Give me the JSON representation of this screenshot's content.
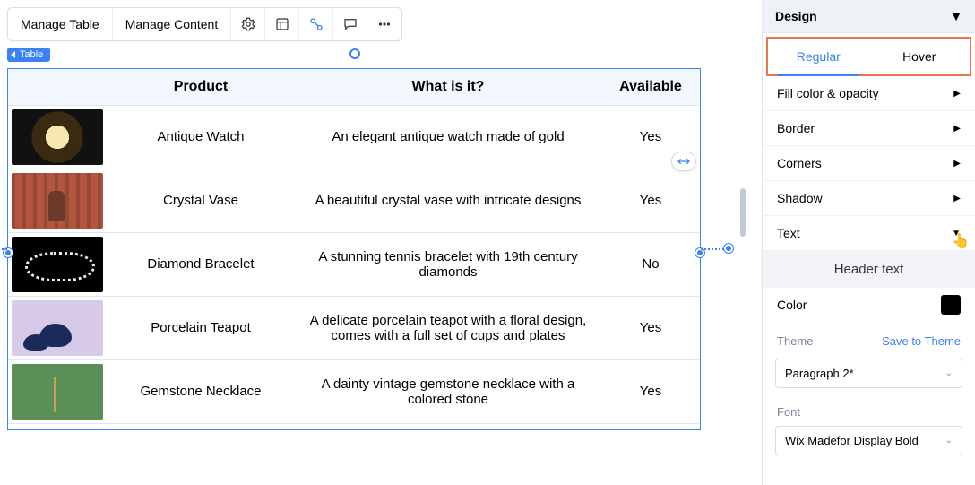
{
  "toolbar": {
    "manage_table": "Manage Table",
    "manage_content": "Manage Content"
  },
  "breadcrumb": {
    "label": "Table"
  },
  "table": {
    "columns": [
      "",
      "Product",
      "What is it?",
      "Available"
    ],
    "col_widths": [
      "110px",
      "210px",
      "auto",
      "110px"
    ],
    "header_bg": "#f3f8ff",
    "border_color": "#e0e6ef",
    "selection_color": "#3b82f6",
    "rows": [
      {
        "thumb_class": "p0",
        "product": "Antique Watch",
        "desc": "An elegant antique watch made of gold",
        "available": "Yes"
      },
      {
        "thumb_class": "p1",
        "product": "Crystal Vase",
        "desc": "A beautiful crystal vase with intricate designs",
        "available": "Yes"
      },
      {
        "thumb_class": "p2",
        "product": "Diamond Bracelet",
        "desc": "A stunning tennis bracelet with 19th century diamonds",
        "available": "No"
      },
      {
        "thumb_class": "p3",
        "product": "Porcelain Teapot",
        "desc": "A delicate porcelain teapot with a floral design, comes with a full set of cups and plates",
        "available": "Yes"
      },
      {
        "thumb_class": "p4",
        "product": "Gemstone Necklace",
        "desc": "A dainty vintage gemstone necklace with a colored stone",
        "available": "Yes"
      }
    ]
  },
  "panel": {
    "title": "Design",
    "tabs": {
      "regular": "Regular",
      "hover": "Hover",
      "active": "regular",
      "highlight_color": "#ed7451"
    },
    "rows": {
      "fill": "Fill color & opacity",
      "border": "Border",
      "corners": "Corners",
      "shadow": "Shadow",
      "text": "Text"
    },
    "sub_head": "Header text",
    "color": {
      "label": "Color",
      "value": "#000000"
    },
    "theme": {
      "label": "Theme",
      "save": "Save to Theme",
      "value": "Paragraph 2*"
    },
    "font": {
      "label": "Font",
      "value": "Wix Madefor Display Bold"
    }
  }
}
